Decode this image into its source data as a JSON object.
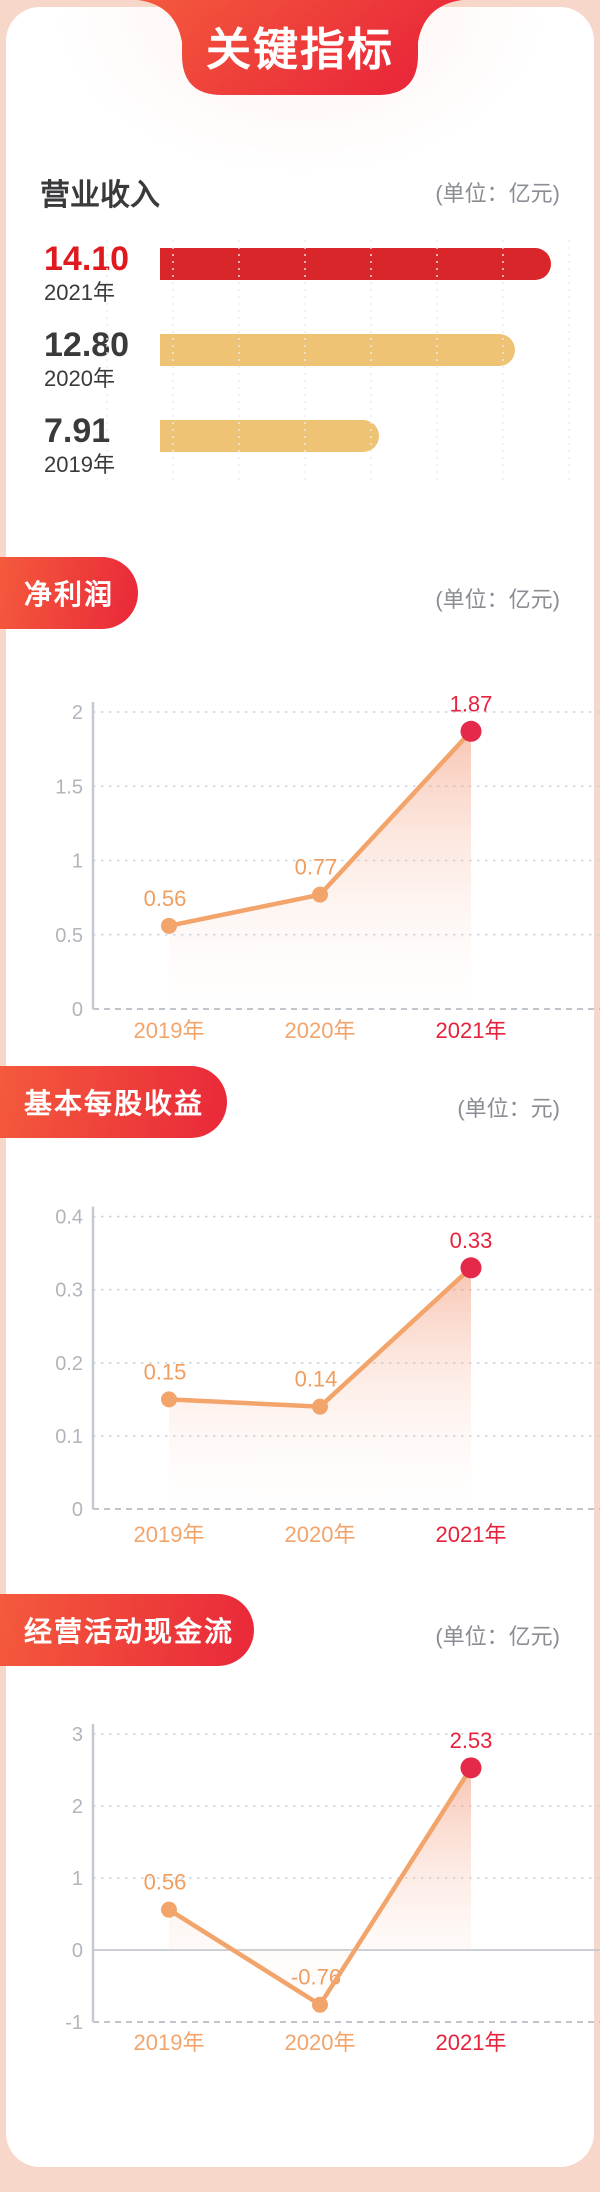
{
  "page": {
    "title": "关键指标"
  },
  "colors": {
    "page_bg": "#f8d7cb",
    "card_bg": "#ffffff",
    "banner_gradient_start": "#f45a3c",
    "banner_gradient_end": "#e92839",
    "bar_red": "#d8262a",
    "bar_gold": "#eec374",
    "value_red": "#e0191f",
    "text_dark": "#3a3a3c",
    "unit_gray": "#8a8d93",
    "line_orange": "#f2a46b",
    "point_label_orange": "#f09e60",
    "last_dot_red": "#e4294a",
    "last_label_red": "#e6223c",
    "tick_gray": "#b2b5bb",
    "grid_dash": "#c9d4e4",
    "axis_gray": "#c5c9d0",
    "zero_dash": "#b8bdc5",
    "bar_grid": "#ebebeb"
  },
  "sections": [
    {
      "title": "营业收入",
      "unit": "(单位：亿元)"
    },
    {
      "title": "净利润",
      "unit": "(单位：亿元)"
    },
    {
      "title": "基本每股收益",
      "unit": "(单位：元)"
    },
    {
      "title": "经营活动现金流",
      "unit": "(单位：亿元)"
    }
  ],
  "chart_data": [
    {
      "type": "bar",
      "orientation": "horizontal",
      "title": "营业收入",
      "unit": "亿元",
      "categories": [
        "2021年",
        "2020年",
        "2019年"
      ],
      "values": [
        14.1,
        12.8,
        7.91
      ],
      "value_labels": [
        "14.10",
        "12.80",
        "7.91"
      ],
      "value_label_colors": [
        "#e0191f",
        "#3a3a3c",
        "#3a3a3c"
      ],
      "bar_colors": [
        "#d8262a",
        "#eec374",
        "#eec374"
      ],
      "xlim": [
        0,
        14.7
      ],
      "grid": "vertical-dashed"
    },
    {
      "type": "line",
      "title": "净利润",
      "unit": "亿元",
      "x": [
        "2019年",
        "2020年",
        "2021年"
      ],
      "values": [
        0.56,
        0.77,
        1.87
      ],
      "point_labels": [
        "0.56",
        "0.77",
        "1.87"
      ],
      "ylim": [
        0,
        2
      ],
      "yticks": [
        0,
        0.5,
        1,
        1.5,
        2
      ],
      "grid": "horizontal-dashed",
      "area_fill": true,
      "highlight_last_point": true
    },
    {
      "type": "line",
      "title": "基本每股收益",
      "unit": "元",
      "x": [
        "2019年",
        "2020年",
        "2021年"
      ],
      "values": [
        0.15,
        0.14,
        0.33
      ],
      "point_labels": [
        "0.15",
        "0.14",
        "0.33"
      ],
      "ylim": [
        0,
        0.4
      ],
      "yticks": [
        0,
        0.1,
        0.2,
        0.3,
        0.4
      ],
      "grid": "horizontal-dashed",
      "area_fill": true,
      "highlight_last_point": true
    },
    {
      "type": "line",
      "title": "经营活动现金流",
      "unit": "亿元",
      "x": [
        "2019年",
        "2020年",
        "2021年"
      ],
      "values": [
        0.56,
        -0.76,
        2.53
      ],
      "point_labels": [
        "0.56",
        "-0.76",
        "2.53"
      ],
      "ylim": [
        -1,
        3
      ],
      "yticks": [
        -1,
        0,
        1,
        2,
        3
      ],
      "grid": "horizontal-dashed",
      "area_fill": true,
      "highlight_last_point": true
    }
  ]
}
